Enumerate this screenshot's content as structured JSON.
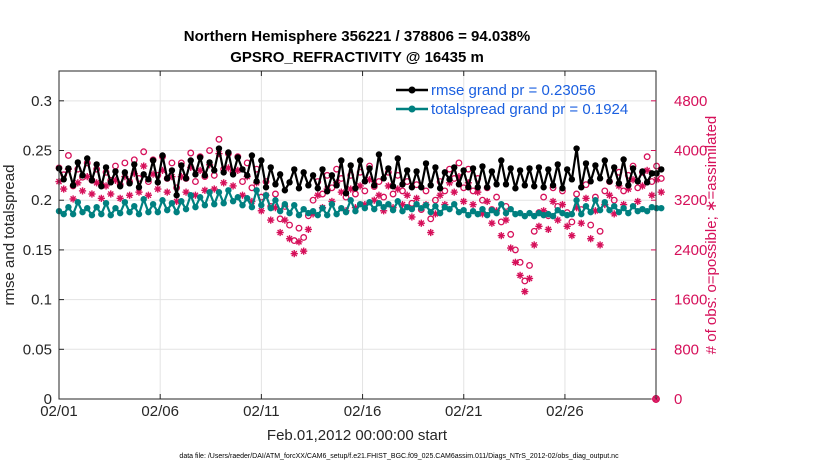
{
  "chart_data": {
    "type": "line",
    "title_line1": "Northern Hemisphere 356221 / 378806 = 94.038%",
    "title_line2": "GPSRO_REFRACTIVITY @ 16435 m",
    "xlabel": "Feb.01,2012 00:00:00 start",
    "ylabel_left": "rmse and totalspread",
    "ylabel_right": "# of obs: o=possible; ∗=assimilated",
    "footnote": "data file: /Users/raeder/DAI/ATM_forcXX/CAM6_setup/f.e21.FHIST_BGC.f09_025.CAM6assim.011/Diags_NTrS_2012-02/obs_diag_output.nc",
    "xlim": [
      0,
      29.5
    ],
    "ylim_left": [
      0,
      0.33
    ],
    "ylim_right": [
      0,
      5280
    ],
    "x_ticks": [
      0,
      5,
      10,
      15,
      20,
      25
    ],
    "x_tick_labels": [
      "02/01",
      "02/06",
      "02/11",
      "02/16",
      "02/21",
      "02/26"
    ],
    "y_left_ticks": [
      0,
      0.05,
      0.1,
      0.15,
      0.2,
      0.25,
      0.3
    ],
    "y_left_tick_labels": [
      "0",
      "0.05",
      "0.1",
      "0.15",
      "0.2",
      "0.25",
      "0.3"
    ],
    "y_right_ticks": [
      0,
      800,
      1600,
      2400,
      3200,
      4000,
      4800
    ],
    "y_right_tick_labels": [
      "0",
      "800",
      "1600",
      "2400",
      "3200",
      "4000",
      "4800"
    ],
    "grid": true,
    "legend_position": "top-right",
    "series": [
      {
        "name": "rmse grand pr = 0.23056",
        "color": "#000000",
        "marker": "filled-circle",
        "axis": "left",
        "values": [
          0.232,
          0.221,
          0.232,
          0.215,
          0.238,
          0.225,
          0.242,
          0.22,
          0.236,
          0.214,
          0.233,
          0.218,
          0.229,
          0.214,
          0.228,
          0.217,
          0.236,
          0.213,
          0.226,
          0.221,
          0.24,
          0.218,
          0.245,
          0.222,
          0.23,
          0.205,
          0.235,
          0.222,
          0.24,
          0.226,
          0.243,
          0.225,
          0.238,
          0.23,
          0.252,
          0.228,
          0.248,
          0.226,
          0.243,
          0.231,
          0.225,
          0.245,
          0.219,
          0.24,
          0.213,
          0.233,
          0.216,
          0.226,
          0.21,
          0.218,
          0.231,
          0.212,
          0.228,
          0.215,
          0.225,
          0.212,
          0.231,
          0.209,
          0.225,
          0.215,
          0.24,
          0.207,
          0.235,
          0.212,
          0.24,
          0.219,
          0.232,
          0.215,
          0.246,
          0.222,
          0.232,
          0.214,
          0.242,
          0.216,
          0.23,
          0.213,
          0.229,
          0.213,
          0.237,
          0.215,
          0.233,
          0.212,
          0.228,
          0.221,
          0.233,
          0.216,
          0.23,
          0.213,
          0.232,
          0.213,
          0.234,
          0.213,
          0.229,
          0.216,
          0.24,
          0.216,
          0.232,
          0.212,
          0.23,
          0.215,
          0.232,
          0.214,
          0.233,
          0.213,
          0.231,
          0.215,
          0.236,
          0.212,
          0.231,
          0.221,
          0.252,
          0.213,
          0.237,
          0.219,
          0.235,
          0.222,
          0.24,
          0.219,
          0.233,
          0.217,
          0.241,
          0.215,
          0.232,
          0.219,
          0.229,
          0.218,
          0.227,
          0.227,
          0.231
        ]
      },
      {
        "name": "totalspread grand pr = 0.1924",
        "color": "#008080",
        "marker": "filled-circle",
        "axis": "left",
        "values": [
          0.189,
          0.186,
          0.193,
          0.186,
          0.198,
          0.188,
          0.192,
          0.185,
          0.193,
          0.186,
          0.197,
          0.185,
          0.192,
          0.187,
          0.198,
          0.188,
          0.194,
          0.186,
          0.201,
          0.188,
          0.196,
          0.188,
          0.2,
          0.19,
          0.197,
          0.188,
          0.199,
          0.191,
          0.205,
          0.193,
          0.203,
          0.195,
          0.208,
          0.196,
          0.208,
          0.197,
          0.21,
          0.199,
          0.203,
          0.195,
          0.202,
          0.193,
          0.21,
          0.195,
          0.205,
          0.192,
          0.2,
          0.189,
          0.196,
          0.187,
          0.195,
          0.185,
          0.191,
          0.187,
          0.189,
          0.185,
          0.192,
          0.185,
          0.196,
          0.186,
          0.192,
          0.188,
          0.2,
          0.189,
          0.196,
          0.192,
          0.198,
          0.191,
          0.197,
          0.193,
          0.196,
          0.19,
          0.199,
          0.189,
          0.193,
          0.191,
          0.196,
          0.192,
          0.195,
          0.188,
          0.194,
          0.187,
          0.193,
          0.191,
          0.196,
          0.188,
          0.19,
          0.185,
          0.189,
          0.186,
          0.191,
          0.185,
          0.19,
          0.187,
          0.196,
          0.187,
          0.191,
          0.186,
          0.187,
          0.184,
          0.187,
          0.184,
          0.187,
          0.185,
          0.186,
          0.184,
          0.19,
          0.187,
          0.185,
          0.186,
          0.2,
          0.186,
          0.194,
          0.188,
          0.2,
          0.19,
          0.198,
          0.19,
          0.194,
          0.188,
          0.192,
          0.187,
          0.194,
          0.189,
          0.191,
          0.189,
          0.193,
          0.192,
          0.192
        ]
      },
      {
        "name": "possible",
        "color": "#d6105a",
        "marker": "open-circle",
        "axis": "right",
        "values": [
          3720,
          3610,
          3920,
          3430,
          3700,
          3570,
          3800,
          3520,
          3700,
          3450,
          3650,
          3520,
          3750,
          3450,
          3800,
          3500,
          3850,
          3550,
          3980,
          3500,
          3850,
          3600,
          3900,
          3550,
          3800,
          3400,
          3800,
          3550,
          3960,
          3500,
          3900,
          3580,
          4000,
          3600,
          4180,
          3700,
          3950,
          3650,
          3900,
          3500,
          3800,
          3400,
          3700,
          3250,
          3500,
          3100,
          3300,
          2900,
          3100,
          2800,
          2550,
          2750,
          2600,
          2950,
          3200,
          3500,
          3300,
          3600,
          3400,
          3700,
          3550,
          3250,
          3600,
          3300,
          3650,
          3350,
          3750,
          3420,
          3500,
          3250,
          3650,
          3300,
          3600,
          3350,
          3500,
          3150,
          3450,
          3050,
          3350,
          2900,
          3200,
          3500,
          3350,
          3700,
          3550,
          3800,
          3400,
          3700,
          3350,
          3550,
          3200,
          3400,
          3050,
          3250,
          2850,
          3100,
          2650,
          2400,
          2200,
          1900,
          2150,
          2700,
          3000,
          3250,
          2950,
          3400,
          3100,
          3350,
          3000,
          2850,
          3300,
          3050,
          3450,
          2800,
          3250,
          2700,
          3350,
          3500,
          3200,
          3650,
          3350,
          3600,
          3750,
          3400,
          3650,
          3900,
          3500,
          3750,
          3550
        ]
      },
      {
        "name": "assimilated",
        "color": "#d6105a",
        "marker": "asterisk",
        "axis": "right",
        "values": [
          3500,
          3380,
          3700,
          3220,
          3480,
          3350,
          3580,
          3300,
          3480,
          3230,
          3430,
          3300,
          3520,
          3230,
          3580,
          3280,
          3630,
          3330,
          3750,
          3280,
          3620,
          3380,
          3680,
          3330,
          3580,
          3180,
          3580,
          3330,
          3730,
          3280,
          3680,
          3360,
          3770,
          3380,
          3950,
          3480,
          3720,
          3430,
          3680,
          3280,
          3580,
          3180,
          3480,
          3030,
          3280,
          2880,
          3080,
          2680,
          2880,
          2580,
          2340,
          2530,
          2380,
          2730,
          2980,
          3280,
          3080,
          3380,
          3180,
          3480,
          3330,
          3030,
          3380,
          3080,
          3430,
          3130,
          3530,
          3200,
          3280,
          3030,
          3430,
          3080,
          3380,
          3130,
          3280,
          2930,
          3230,
          2830,
          3130,
          2680,
          2980,
          3280,
          3130,
          3480,
          3330,
          3580,
          3180,
          3480,
          3130,
          3330,
          2980,
          3180,
          2830,
          3030,
          2630,
          2880,
          2430,
          2200,
          1990,
          1730,
          1940,
          2480,
          2780,
          3030,
          2730,
          3180,
          2880,
          3130,
          2780,
          2630,
          3080,
          2830,
          3230,
          2580,
          3030,
          2480,
          3130,
          3280,
          2980,
          3430,
          3130,
          3380,
          3530,
          3180,
          3430,
          3680,
          3280,
          3530,
          3330
        ]
      }
    ],
    "last_point_marker_value": 0
  }
}
